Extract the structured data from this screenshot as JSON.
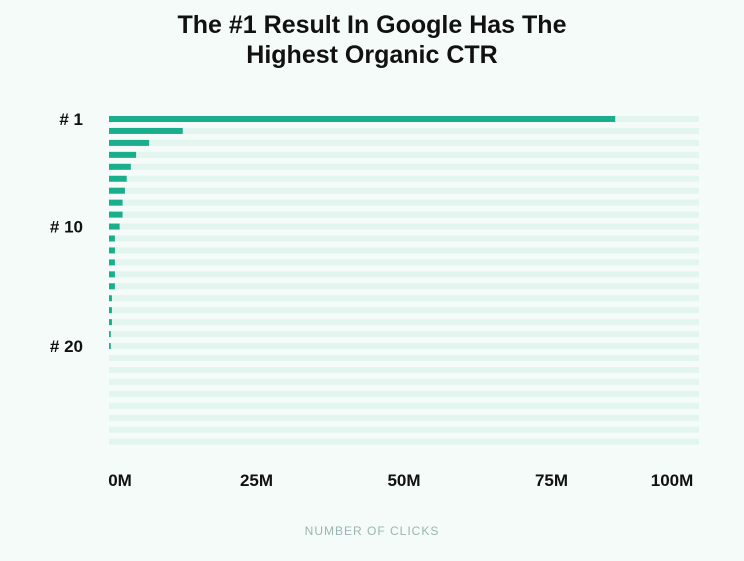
{
  "chart_data": {
    "type": "bar",
    "orientation": "horizontal",
    "title": "The #1 Result In Google Has The Highest Organic CTR",
    "title_lines": [
      "The #1 Result In Google Has The",
      "Highest Organic CTR"
    ],
    "xlabel": "NUMBER OF CLICKS",
    "ylabel": "",
    "xlim": [
      0,
      100000000
    ],
    "x_tick_labels": [
      "0M",
      "25M",
      "50M",
      "75M",
      "100M"
    ],
    "y_tick_labels": [
      {
        "position": 1,
        "label": "# 1"
      },
      {
        "position": 10,
        "label": "# 10"
      },
      {
        "position": 20,
        "label": "# 20"
      }
    ],
    "positions": [
      1,
      2,
      3,
      4,
      5,
      6,
      7,
      8,
      9,
      10,
      11,
      12,
      13,
      14,
      15,
      16,
      17,
      18,
      19,
      20,
      21,
      22,
      23,
      24,
      25,
      26,
      27,
      28
    ],
    "values": [
      85800000,
      12500000,
      6800000,
      4600000,
      3700000,
      3000000,
      2700000,
      2300000,
      2300000,
      1800000,
      1000000,
      1000000,
      1000000,
      1000000,
      1000000,
      500000,
      500000,
      500000,
      300000,
      300000,
      0,
      0,
      0,
      0,
      0,
      0,
      0,
      0
    ],
    "grid": true,
    "legend": false,
    "colors": {
      "bar": "#1aae8c",
      "track": "#e2f5ef",
      "background": "#f4fbf9",
      "text": "#111111",
      "axis_title": "#9db5b0"
    }
  }
}
